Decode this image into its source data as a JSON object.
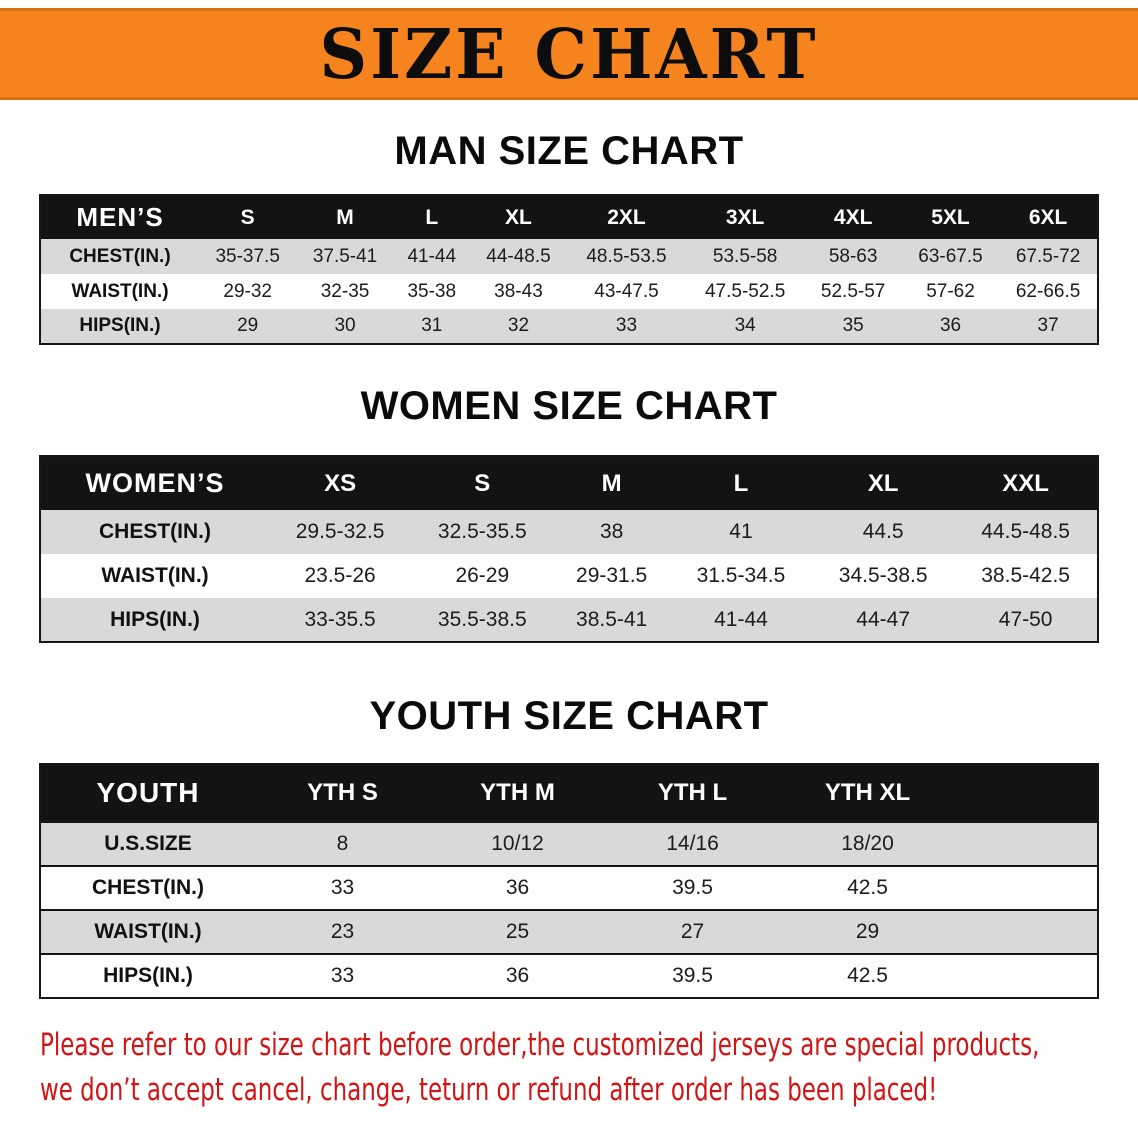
{
  "banner": {
    "title": "SIZE CHART"
  },
  "colors": {
    "banner_orange": "#F5841F",
    "table_header_black": "#131313",
    "row_stripe_gray": "#D9D9D9",
    "note_red": "#D21414"
  },
  "men": {
    "heading": "MAN SIZE CHART",
    "table": {
      "header": [
        "MEN’S",
        "S",
        "M",
        "L",
        "XL",
        "2XL",
        "3XL",
        "4XL",
        "5XL",
        "6XL"
      ],
      "rows": [
        {
          "label": "CHEST(IN.)",
          "values": [
            "35-37.5",
            "37.5-41",
            "41-44",
            "44-48.5",
            "48.5-53.5",
            "53.5-58",
            "58-63",
            "63-67.5",
            "67.5-72"
          ]
        },
        {
          "label": "WAIST(IN.)",
          "values": [
            "29-32",
            "32-35",
            "35-38",
            "38-43",
            "43-47.5",
            "47.5-52.5",
            "52.5-57",
            "57-62",
            "62-66.5"
          ]
        },
        {
          "label": "HIPS(IN.)",
          "values": [
            "29",
            "30",
            "31",
            "32",
            "33",
            "34",
            "35",
            "36",
            "37"
          ]
        }
      ]
    }
  },
  "women": {
    "heading": "WOMEN SIZE CHART",
    "table": {
      "header": [
        "WOMEN’S",
        "XS",
        "S",
        "M",
        "L",
        "XL",
        "XXL"
      ],
      "rows": [
        {
          "label": "CHEST(IN.)",
          "values": [
            "29.5-32.5",
            "32.5-35.5",
            "38",
            "41",
            "44.5",
            "44.5-48.5"
          ]
        },
        {
          "label": "WAIST(IN.)",
          "values": [
            "23.5-26",
            "26-29",
            "29-31.5",
            "31.5-34.5",
            "34.5-38.5",
            "38.5-42.5"
          ]
        },
        {
          "label": "HIPS(IN.)",
          "values": [
            "33-35.5",
            "35.5-38.5",
            "38.5-41",
            "41-44",
            "44-47",
            "47-50"
          ]
        }
      ]
    }
  },
  "youth": {
    "heading": "YOUTH SIZE CHART",
    "table": {
      "header": [
        "YOUTH",
        "YTH S",
        "YTH M",
        "YTH L",
        "YTH XL"
      ],
      "rows": [
        {
          "label": "U.S.SIZE",
          "values": [
            "8",
            "10/12",
            "14/16",
            "18/20"
          ]
        },
        {
          "label": "CHEST(IN.)",
          "values": [
            "33",
            "36",
            "39.5",
            "42.5"
          ]
        },
        {
          "label": "WAIST(IN.)",
          "values": [
            "23",
            "25",
            "27",
            "29"
          ]
        },
        {
          "label": "HIPS(IN.)",
          "values": [
            "33",
            "36",
            "39.5",
            "42.5"
          ]
        }
      ]
    }
  },
  "note": {
    "line1": "Please refer to our size chart before order,the customized jerseys are special products,",
    "line2": "we don’t accept cancel, change, teturn or refund after order has been placed!"
  }
}
